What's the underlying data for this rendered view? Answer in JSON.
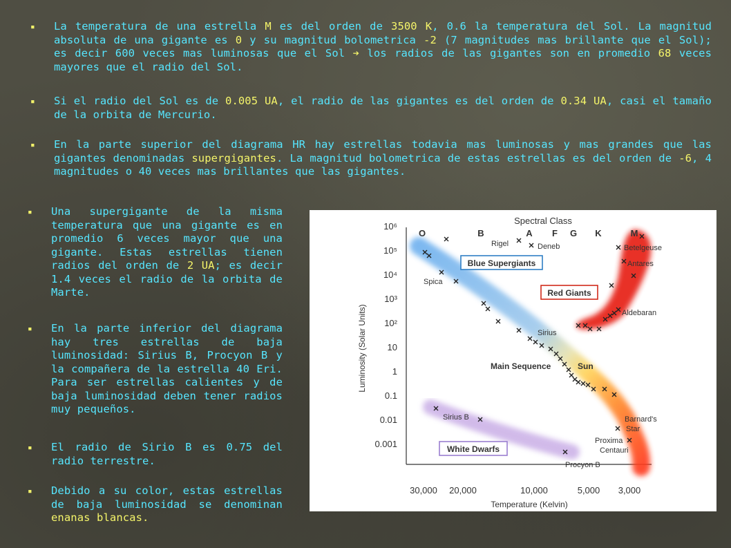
{
  "paragraphs": [
    {
      "parts": [
        {
          "t": "La temperatura de una estrella "
        },
        {
          "t": "M",
          "y": true
        },
        {
          "t": " es del orden de "
        },
        {
          "t": "3500 K",
          "y": true
        },
        {
          "t": ", 0.6 la temperatura del Sol. La magnitud absoluta de una gigante es "
        },
        {
          "t": "0",
          "y": true
        },
        {
          "t": " y su magnitud bolometrica "
        },
        {
          "t": "-2",
          "y": true
        },
        {
          "t": " (7 magnitudes mas brillante que el Sol); es decir 600 veces mas luminosas que el Sol "
        },
        {
          "t": "➔",
          "y": true
        },
        {
          "t": " los radios de las gigantes son en promedio "
        },
        {
          "t": "68",
          "y": true
        },
        {
          "t": " veces mayores que el radio del Sol."
        }
      ]
    },
    {
      "parts": [
        {
          "t": "Si el radio del Sol es de "
        },
        {
          "t": "0.005 UA",
          "y": true
        },
        {
          "t": ", el radio de las gigantes es del orden de "
        },
        {
          "t": "0.34 UA",
          "y": true
        },
        {
          "t": ", casi el tamaño de la orbita de Mercurio."
        }
      ]
    },
    {
      "parts": [
        {
          "t": "En la parte superior del diagrama HR hay estrellas todavia mas luminosas y mas grandes que las gigantes denominadas "
        },
        {
          "t": "supergigantes",
          "y": true
        },
        {
          "t": ". La magnitud bolometrica de estas estrellas es del orden de "
        },
        {
          "t": "-6",
          "y": true
        },
        {
          "t": ", 4 magnitudes o 40 veces mas brillantes que las gigantes."
        }
      ]
    },
    {
      "parts": [
        {
          "t": "Una supergigante de la misma temperatura que una gigante es en promedio 6 veces mayor que una gigante. Estas estrellas tienen radios del orden de "
        },
        {
          "t": "2 UA",
          "y": true
        },
        {
          "t": "; es decir 1.4 veces el radio de la orbita de Marte."
        }
      ]
    },
    {
      "parts": [
        {
          "t": "En la parte inferior del diagrama hay tres estrellas de baja luminosidad: Sirius B, Procyon B y la compañera de la estrella 40 Eri. Para ser estrellas calientes y de baja luminosidad deben tener radios muy pequeños."
        }
      ]
    },
    {
      "parts": [
        {
          "t": "El radio de Sirio B es 0.75 del radio terrestre."
        }
      ]
    },
    {
      "parts": [
        {
          "t": "Debido a su color, estas estrellas de baja luminosidad se denominan "
        },
        {
          "t": "enanas blancas.",
          "y": true
        }
      ]
    }
  ],
  "bullet": "▪",
  "colors": {
    "text": "#56e6ff",
    "highlight": "#f5f56a",
    "background": "#4f4e43"
  },
  "diagram": {
    "title": "Spectral Class",
    "spectral_classes": [
      "O",
      "B",
      "A",
      "F",
      "G",
      "K",
      "M"
    ],
    "y_label": "Luminosity (Solar Units)",
    "x_label": "Temperature (Kelvin)",
    "y_ticks": [
      "10⁶",
      "10⁵",
      "10⁴",
      "10³",
      "10²",
      "10",
      "1",
      "0.1",
      "0.01",
      "0.001"
    ],
    "x_ticks": [
      "30,000",
      "20,000",
      "10,000",
      "5,000",
      "3,000"
    ],
    "boxes": [
      "Blue Supergiants",
      "Red Giants",
      "White Dwarfs"
    ],
    "region_labels": [
      "Main Sequence",
      "Sun"
    ],
    "stars": [
      "Rigel",
      "Deneb",
      "Betelgeuse",
      "Antares",
      "Spica",
      "Aldebaran",
      "Sirius",
      "Sirius B",
      "Barnard's",
      "Star",
      "Proxima",
      "Centauri",
      "Procyon B"
    ]
  }
}
